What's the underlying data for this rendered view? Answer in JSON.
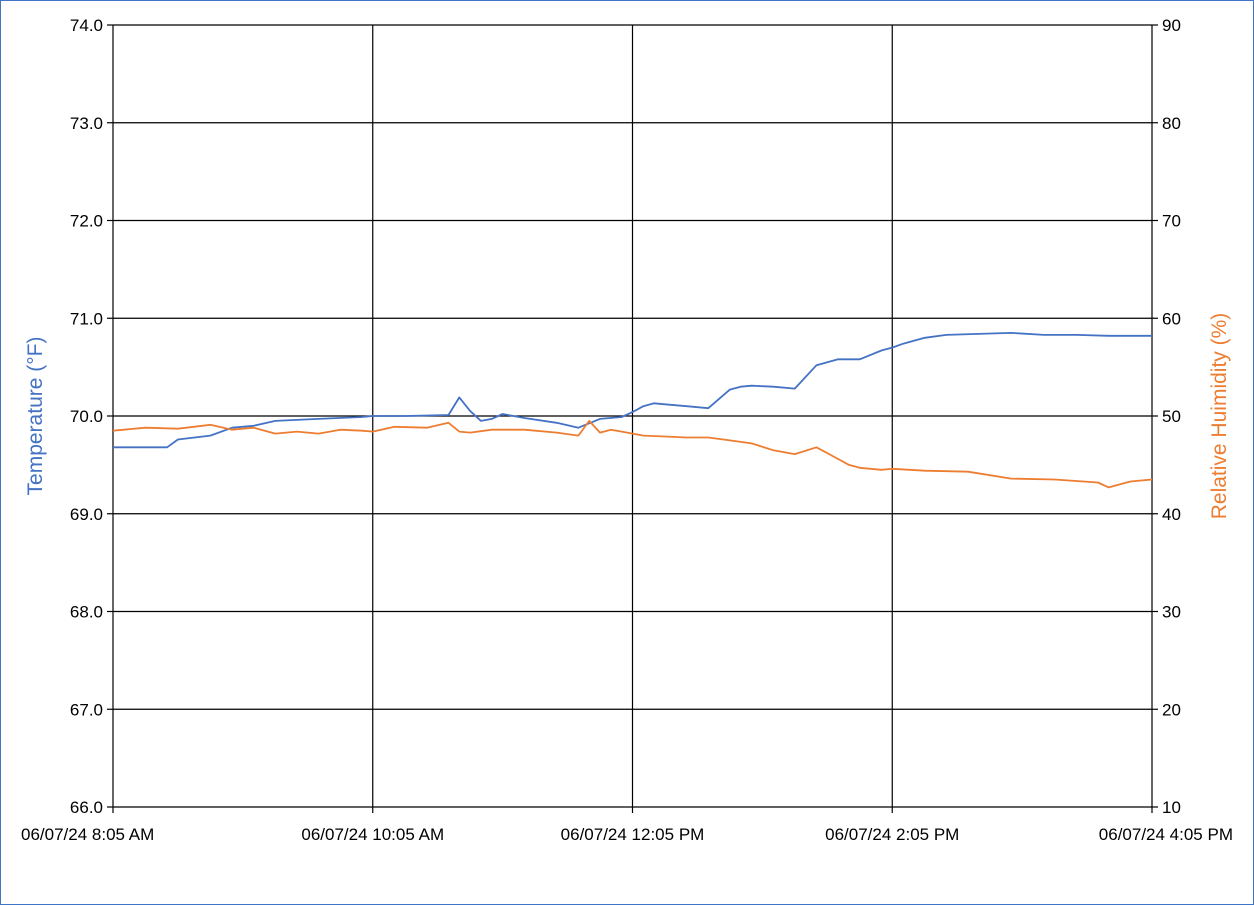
{
  "chart_data": {
    "type": "line",
    "title": "",
    "xlabel": "",
    "x_tick_labels": [
      "06/07/24 8:05 AM",
      "06/07/24 10:05 AM",
      "06/07/24 12:05 PM",
      "06/07/24 2:05 PM",
      "06/07/24 4:05 PM"
    ],
    "xlim": [
      "06/07/24 8:05 AM",
      "06/07/24 4:05 PM"
    ],
    "x_unit": "time",
    "y_left": {
      "label": "Temperature (°F)",
      "ylim": [
        66.0,
        74.0
      ],
      "ticks": [
        "66.0",
        "67.0",
        "68.0",
        "69.0",
        "70.0",
        "71.0",
        "72.0",
        "73.0",
        "74.0"
      ],
      "color": "#4472c4"
    },
    "y_right": {
      "label": "Relative Huimidity (%)",
      "ylim": [
        10,
        90
      ],
      "ticks": [
        "10",
        "20",
        "30",
        "40",
        "50",
        "60",
        "70",
        "80",
        "90"
      ],
      "color": "#ed7d31"
    },
    "grid": true,
    "legend": "none",
    "series": [
      {
        "axis": "left",
        "color": "#4472c4",
        "x": [
          "8:05",
          "8:30",
          "8:35",
          "8:50",
          "9:00",
          "9:10",
          "9:20",
          "9:40",
          "10:00",
          "10:05",
          "10:20",
          "10:40",
          "10:45",
          "10:50",
          "10:55",
          "11:00",
          "11:05",
          "11:15",
          "11:30",
          "11:40",
          "11:50",
          "12:00",
          "12:05",
          "12:10",
          "12:15",
          "12:20",
          "12:30",
          "12:40",
          "12:50",
          "12:55",
          "13:00",
          "13:10",
          "13:20",
          "13:30",
          "13:40",
          "13:45",
          "13:50",
          "14:00",
          "14:05",
          "14:10",
          "14:20",
          "14:30",
          "14:45",
          "15:00",
          "15:15",
          "15:30",
          "15:45",
          "16:05"
        ],
        "values": [
          69.68,
          69.68,
          69.76,
          69.8,
          69.88,
          69.9,
          69.95,
          69.97,
          69.99,
          70.0,
          70.0,
          70.01,
          70.19,
          70.05,
          69.95,
          69.97,
          70.02,
          69.98,
          69.93,
          69.88,
          69.97,
          69.99,
          70.04,
          70.1,
          70.13,
          70.12,
          70.1,
          70.08,
          70.27,
          70.3,
          70.31,
          70.3,
          70.28,
          70.52,
          70.58,
          70.58,
          70.58,
          70.67,
          70.7,
          70.74,
          70.8,
          70.83,
          70.84,
          70.85,
          70.83,
          70.83,
          70.82,
          70.82
        ]
      },
      {
        "axis": "right",
        "color": "#ed7d31",
        "x": [
          "8:05",
          "8:20",
          "8:35",
          "8:50",
          "9:00",
          "9:10",
          "9:20",
          "9:30",
          "9:40",
          "9:50",
          "10:00",
          "10:05",
          "10:15",
          "10:30",
          "10:40",
          "10:45",
          "10:50",
          "11:00",
          "11:15",
          "11:30",
          "11:40",
          "11:45",
          "11:50",
          "11:55",
          "12:00",
          "12:05",
          "12:10",
          "12:20",
          "12:30",
          "12:40",
          "12:50",
          "13:00",
          "13:10",
          "13:20",
          "13:30",
          "13:40",
          "13:45",
          "13:50",
          "14:00",
          "14:05",
          "14:20",
          "14:40",
          "15:00",
          "15:20",
          "15:40",
          "15:45",
          "15:55",
          "16:05"
        ],
        "values": [
          48.5,
          48.8,
          48.7,
          49.1,
          48.6,
          48.8,
          48.2,
          48.4,
          48.2,
          48.6,
          48.5,
          48.4,
          48.9,
          48.8,
          49.3,
          48.4,
          48.3,
          48.6,
          48.6,
          48.3,
          48.0,
          49.5,
          48.3,
          48.6,
          48.4,
          48.2,
          48.0,
          47.9,
          47.8,
          47.8,
          47.5,
          47.2,
          46.5,
          46.1,
          46.8,
          45.6,
          45.0,
          44.7,
          44.5,
          44.6,
          44.4,
          44.3,
          43.6,
          43.5,
          43.2,
          42.7,
          43.3,
          43.5
        ]
      }
    ]
  }
}
